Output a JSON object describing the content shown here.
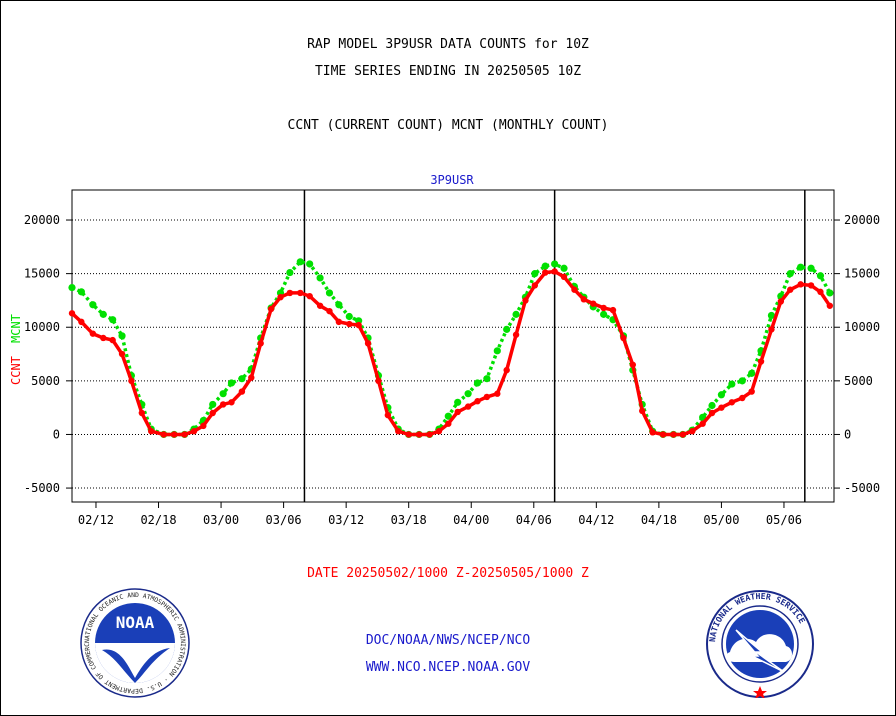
{
  "header": {
    "title_line1": "RAP MODEL 3P9USR DATA COUNTS for 10Z",
    "title_line2": "TIME SERIES ENDING IN 20250505 10Z",
    "title_line3": "CCNT (CURRENT COUNT) MCNT (MONTHLY COUNT)"
  },
  "footer": {
    "date_range": "DATE 20250502/1000 Z-20250505/1000 Z",
    "link1": "DOC/NOAA/NWS/NCEP/NCO",
    "link2": "WWW.NCO.NCEP.NOAA.GOV"
  },
  "logos": {
    "noaa_text": "NOAA",
    "noaa_ring": "NATIONAL OCEANIC AND ATMOSPHERIC ADMINISTRATION · U.S. DEPARTMENT OF COMMERCE ·",
    "nws_ring": "NATIONAL WEATHER SERVICE"
  },
  "colors": {
    "ccnt": "#ff0000",
    "mcnt": "#00e000",
    "text_blue": "#1a1acc",
    "axis": "#000000"
  },
  "chart_data": {
    "type": "line",
    "title": "3P9USR",
    "ylabel_left": [
      "CCNT",
      "MCNT"
    ],
    "x_tick_labels": [
      "02/12",
      "02/18",
      "03/00",
      "03/06",
      "03/12",
      "03/18",
      "04/00",
      "04/06",
      "04/12",
      "04/18",
      "05/00",
      "05/06"
    ],
    "x_range_hours": [
      -70.3,
      2.8
    ],
    "x_tick_positions_hours": [
      -68,
      -62,
      -56,
      -50,
      -44,
      -38,
      -32,
      -26,
      -20,
      -14,
      -8,
      -2
    ],
    "day_boundaries_hours": [
      -48,
      -24,
      0
    ],
    "ylim": [
      -6300,
      22800
    ],
    "yticks": [
      -5000,
      0,
      5000,
      10000,
      15000,
      20000
    ],
    "grid": "horizontal dotted",
    "series": [
      {
        "name": "CCNT",
        "values": [
          [
            -70.3,
            11300
          ],
          [
            -69.4,
            10500
          ],
          [
            -68.3,
            9400
          ],
          [
            -67.3,
            9000
          ],
          [
            -66.4,
            8800
          ],
          [
            -65.5,
            7500
          ],
          [
            -64.6,
            5000
          ],
          [
            -63.6,
            2000
          ],
          [
            -62.7,
            300
          ],
          [
            -61.5,
            0
          ],
          [
            -60.5,
            0
          ],
          [
            -59.5,
            0
          ],
          [
            -58.6,
            300
          ],
          [
            -57.7,
            800
          ],
          [
            -56.8,
            2000
          ],
          [
            -55.8,
            2800
          ],
          [
            -55.0,
            3000
          ],
          [
            -54.0,
            4000
          ],
          [
            -53.1,
            5300
          ],
          [
            -52.2,
            8500
          ],
          [
            -51.2,
            11700
          ],
          [
            -50.3,
            12800
          ],
          [
            -49.4,
            13200
          ],
          [
            -48.4,
            13200
          ],
          [
            -47.5,
            12900
          ],
          [
            -46.5,
            12000
          ],
          [
            -45.6,
            11500
          ],
          [
            -44.7,
            10500
          ],
          [
            -43.7,
            10300
          ],
          [
            -42.8,
            10200
          ],
          [
            -41.9,
            8500
          ],
          [
            -40.9,
            5000
          ],
          [
            -40.0,
            1800
          ],
          [
            -39.0,
            300
          ],
          [
            -38.0,
            0
          ],
          [
            -37.0,
            0
          ],
          [
            -36.0,
            0
          ],
          [
            -35.1,
            300
          ],
          [
            -34.2,
            1000
          ],
          [
            -33.3,
            2100
          ],
          [
            -32.3,
            2600
          ],
          [
            -31.4,
            3100
          ],
          [
            -30.5,
            3500
          ],
          [
            -29.5,
            3800
          ],
          [
            -28.6,
            6000
          ],
          [
            -27.7,
            9300
          ],
          [
            -26.8,
            12500
          ],
          [
            -25.9,
            13900
          ],
          [
            -24.9,
            15100
          ],
          [
            -24.0,
            15200
          ],
          [
            -23.1,
            14700
          ],
          [
            -22.1,
            13500
          ],
          [
            -21.2,
            12600
          ],
          [
            -20.3,
            12200
          ],
          [
            -19.3,
            11800
          ],
          [
            -18.4,
            11600
          ],
          [
            -17.4,
            9000
          ],
          [
            -16.5,
            6500
          ],
          [
            -15.6,
            2200
          ],
          [
            -14.6,
            200
          ],
          [
            -13.6,
            0
          ],
          [
            -12.6,
            0
          ],
          [
            -11.7,
            0
          ],
          [
            -10.8,
            300
          ],
          [
            -9.8,
            1000
          ],
          [
            -8.9,
            2000
          ],
          [
            -8.0,
            2500
          ],
          [
            -7.0,
            3000
          ],
          [
            -6.0,
            3400
          ],
          [
            -5.1,
            4000
          ],
          [
            -4.2,
            6800
          ],
          [
            -3.2,
            9800
          ],
          [
            -2.3,
            12400
          ],
          [
            -1.4,
            13500
          ],
          [
            -0.4,
            14000
          ],
          [
            0.6,
            13900
          ],
          [
            1.5,
            13300
          ],
          [
            2.4,
            12000
          ]
        ]
      },
      {
        "name": "MCNT",
        "values": [
          [
            -70.3,
            13700
          ],
          [
            -69.4,
            13300
          ],
          [
            -68.3,
            12100
          ],
          [
            -67.3,
            11200
          ],
          [
            -66.4,
            10700
          ],
          [
            -65.5,
            9200
          ],
          [
            -64.6,
            5500
          ],
          [
            -63.6,
            2800
          ],
          [
            -62.7,
            500
          ],
          [
            -61.5,
            0
          ],
          [
            -60.5,
            0
          ],
          [
            -59.5,
            0
          ],
          [
            -58.6,
            500
          ],
          [
            -57.7,
            1300
          ],
          [
            -56.8,
            2800
          ],
          [
            -55.8,
            3800
          ],
          [
            -55.0,
            4800
          ],
          [
            -54.0,
            5200
          ],
          [
            -53.1,
            6100
          ],
          [
            -52.2,
            9000
          ],
          [
            -51.2,
            11800
          ],
          [
            -50.3,
            13200
          ],
          [
            -49.4,
            15100
          ],
          [
            -48.4,
            16100
          ],
          [
            -47.5,
            15900
          ],
          [
            -46.5,
            14600
          ],
          [
            -45.6,
            13200
          ],
          [
            -44.7,
            12100
          ],
          [
            -43.7,
            11000
          ],
          [
            -42.8,
            10600
          ],
          [
            -41.9,
            9000
          ],
          [
            -40.9,
            5500
          ],
          [
            -40.0,
            2500
          ],
          [
            -39.0,
            500
          ],
          [
            -38.0,
            0
          ],
          [
            -37.0,
            0
          ],
          [
            -36.0,
            0
          ],
          [
            -35.1,
            500
          ],
          [
            -34.2,
            1700
          ],
          [
            -33.3,
            3000
          ],
          [
            -32.3,
            3800
          ],
          [
            -31.4,
            4800
          ],
          [
            -30.5,
            5200
          ],
          [
            -29.5,
            7800
          ],
          [
            -28.6,
            9800
          ],
          [
            -27.7,
            11200
          ],
          [
            -26.8,
            12800
          ],
          [
            -25.9,
            15000
          ],
          [
            -24.9,
            15700
          ],
          [
            -24.0,
            15900
          ],
          [
            -23.1,
            15500
          ],
          [
            -22.1,
            13800
          ],
          [
            -21.2,
            12800
          ],
          [
            -20.3,
            11900
          ],
          [
            -19.3,
            11200
          ],
          [
            -18.4,
            10700
          ],
          [
            -17.4,
            9200
          ],
          [
            -16.5,
            6000
          ],
          [
            -15.6,
            2800
          ],
          [
            -14.6,
            300
          ],
          [
            -13.6,
            0
          ],
          [
            -12.6,
            0
          ],
          [
            -11.7,
            0
          ],
          [
            -10.8,
            400
          ],
          [
            -9.8,
            1600
          ],
          [
            -8.9,
            2700
          ],
          [
            -8.0,
            3700
          ],
          [
            -7.0,
            4700
          ],
          [
            -6.0,
            5000
          ],
          [
            -5.1,
            5700
          ],
          [
            -4.2,
            7800
          ],
          [
            -3.2,
            11100
          ],
          [
            -2.3,
            12900
          ],
          [
            -1.4,
            15000
          ],
          [
            -0.4,
            15600
          ],
          [
            0.6,
            15500
          ],
          [
            1.5,
            14800
          ],
          [
            2.4,
            13200
          ]
        ]
      }
    ]
  }
}
